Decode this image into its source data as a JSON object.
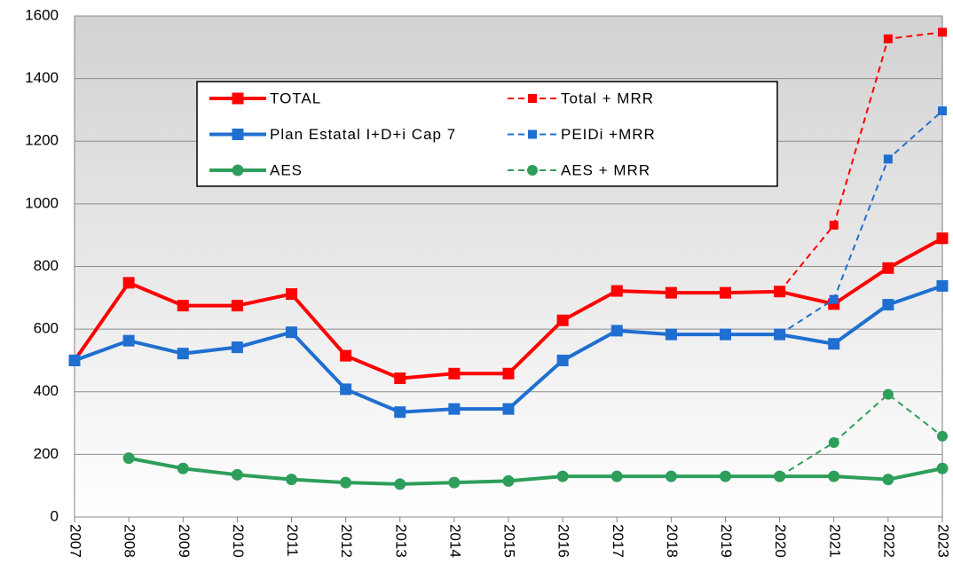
{
  "chart_data": {
    "type": "line",
    "categories": [
      "2007",
      "2008",
      "2009",
      "2010",
      "2011",
      "2012",
      "2013",
      "2014",
      "2015",
      "2016",
      "2017",
      "2018",
      "2019",
      "2020",
      "2021",
      "2022",
      "2023"
    ],
    "series": [
      {
        "name": "TOTAL",
        "color": "#ff0000",
        "dash": false,
        "marker": "square",
        "values": [
          500,
          748,
          675,
          675,
          712,
          515,
          443,
          458,
          458,
          628,
          722,
          716,
          716,
          720,
          680,
          795,
          890
        ]
      },
      {
        "name": "Total + MRR",
        "color": "#ff0000",
        "dash": true,
        "marker": "square",
        "values": [
          null,
          null,
          null,
          null,
          null,
          null,
          null,
          null,
          null,
          null,
          null,
          null,
          null,
          720,
          932,
          1527,
          1548
        ]
      },
      {
        "name": "Plan Estatal I+D+i Cap 7",
        "color": "#1f6fd0",
        "dash": false,
        "marker": "square",
        "values": [
          500,
          563,
          522,
          542,
          590,
          408,
          335,
          345,
          345,
          500,
          595,
          583,
          583,
          583,
          553,
          678,
          738
        ]
      },
      {
        "name": "PEIDi +MRR",
        "color": "#1f6fd0",
        "dash": true,
        "marker": "square",
        "values": [
          null,
          null,
          null,
          null,
          null,
          null,
          null,
          null,
          null,
          null,
          null,
          null,
          null,
          583,
          695,
          1143,
          1297
        ]
      },
      {
        "name": "AES",
        "color": "#2e9e5b",
        "dash": false,
        "marker": "circle",
        "values": [
          null,
          188,
          155,
          135,
          120,
          110,
          105,
          110,
          115,
          130,
          130,
          130,
          130,
          130,
          130,
          120,
          155
        ]
      },
      {
        "name": "AES + MRR",
        "color": "#2e9e5b",
        "dash": true,
        "marker": "circle",
        "values": [
          null,
          null,
          null,
          null,
          null,
          null,
          null,
          null,
          null,
          null,
          null,
          null,
          null,
          130,
          238,
          392,
          258
        ]
      }
    ],
    "ylim": [
      0,
      1600
    ],
    "yticks": [
      0,
      200,
      400,
      600,
      800,
      1000,
      1200,
      1400,
      1600
    ],
    "grid": true
  }
}
